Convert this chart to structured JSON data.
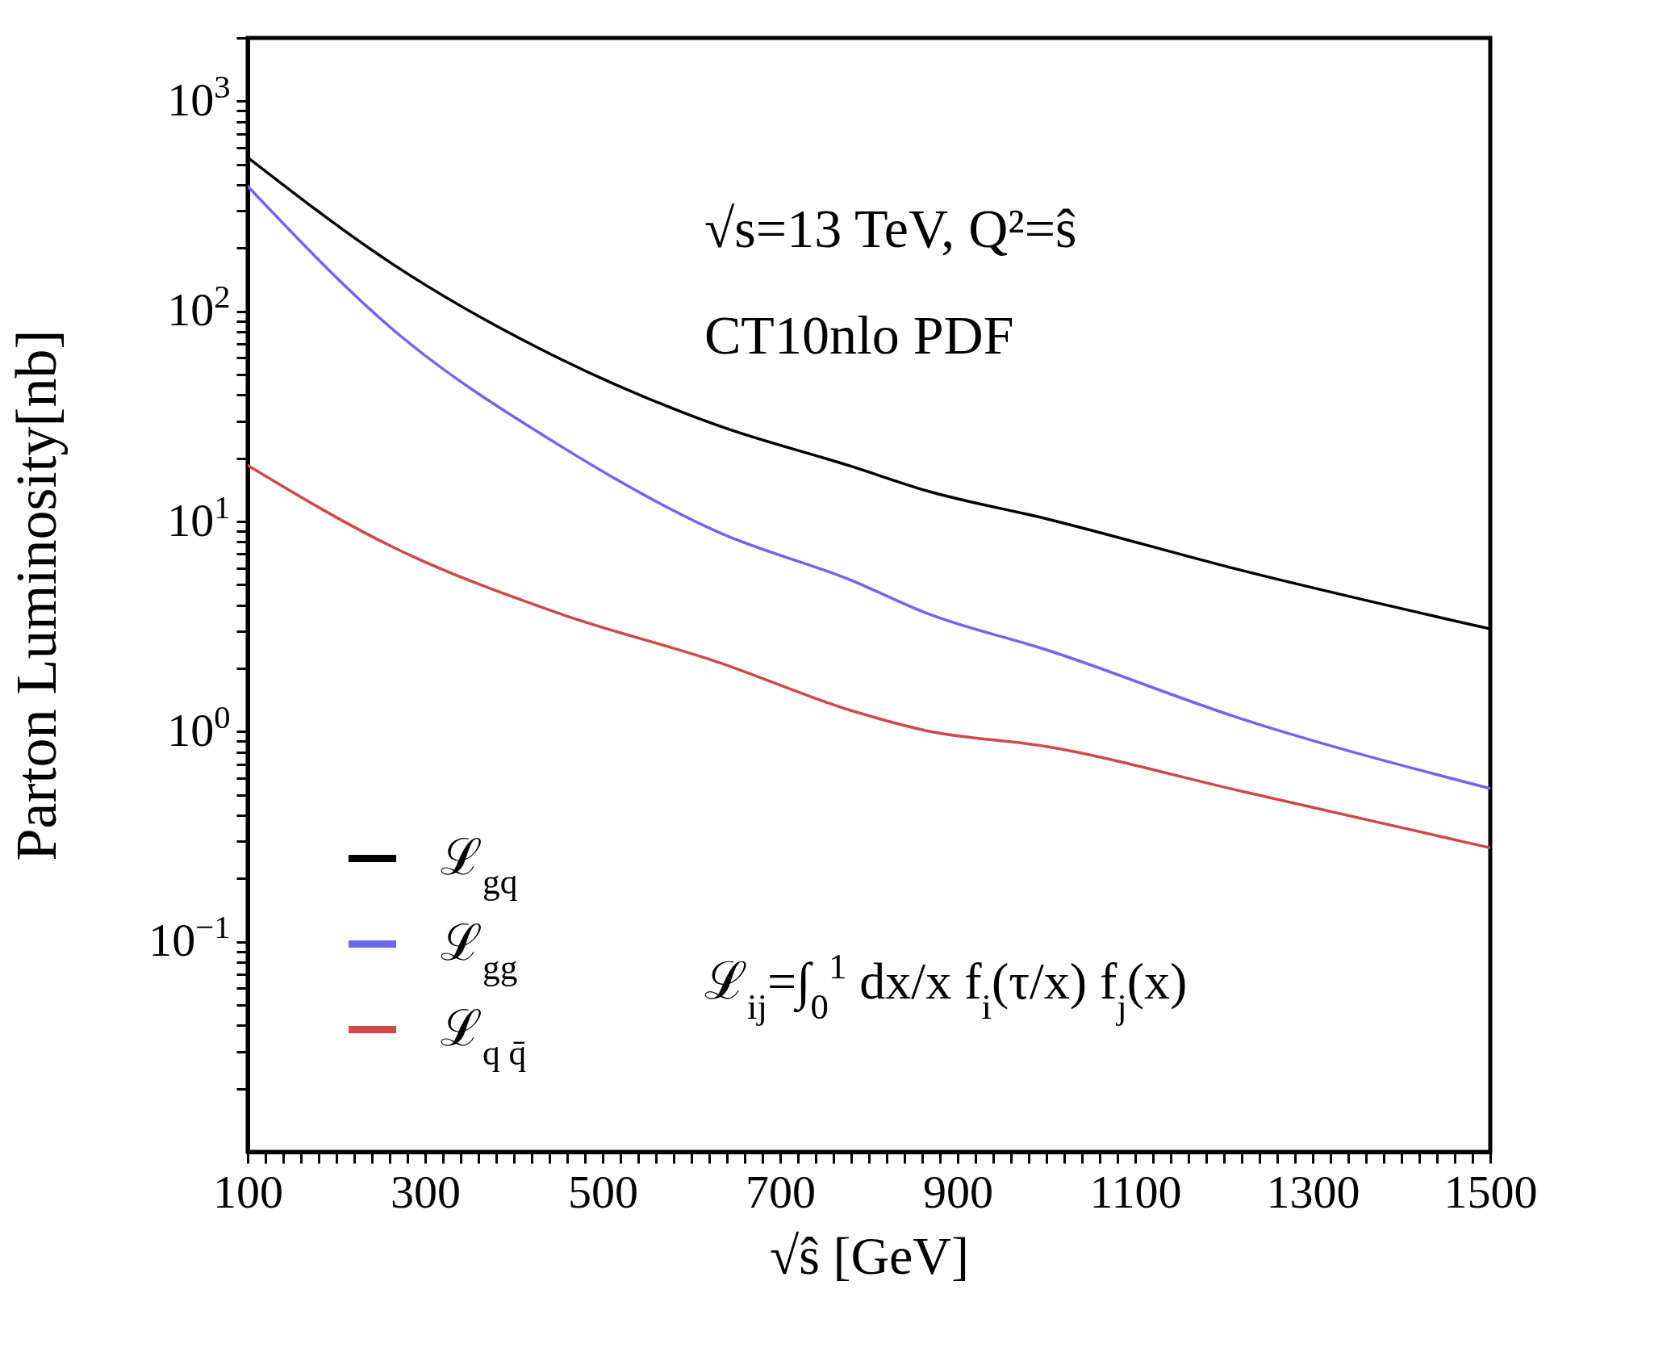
{
  "chart_data": {
    "type": "line",
    "xlabel": "√ŝ [GeV]",
    "ylabel": "Parton Luminosity[nb]",
    "annotations": [
      "√s=13 TeV, Q²=ŝ",
      "CT10nlo PDF",
      "ℒ$_{ij}$=∫$_{0}$$^{1}$ dx/x f$_{i}$(τ/x) f$_{j}$(x)"
    ],
    "x": [
      100,
      265,
      450,
      630,
      780,
      865,
      1000,
      1220,
      1500
    ],
    "series": [
      {
        "name": "ℒ$_{gq}$",
        "color": "#000000",
        "values": [
          540,
          166,
          60,
          28.6,
          18.3,
          14.0,
          10.3,
          5.85,
          3.08
        ]
      },
      {
        "name": "ℒ$_{gg}$",
        "color": "#7066ee",
        "values": [
          394,
          81,
          23.2,
          8.9,
          5.25,
          3.66,
          2.45,
          1.15,
          0.536
        ]
      },
      {
        "name": "ℒ$_{q q̄}$",
        "color": "#d04848",
        "values": [
          18.5,
          7.5,
          3.66,
          2.14,
          1.26,
          1.01,
          0.85,
          0.52,
          0.28
        ]
      }
    ],
    "log": "y",
    "legend": "bottom left",
    "xlim": [
      100,
      1500
    ],
    "ylim": [
      0.01,
      2000
    ],
    "xticks": [
      100,
      {
        "value": 120,
        "label": null
      },
      {
        "value": 140,
        "label": null
      },
      {
        "value": 160,
        "label": null
      },
      {
        "value": 180,
        "label": null
      },
      {
        "value": 200,
        "label": null
      },
      {
        "value": 220,
        "label": null
      },
      {
        "value": 240,
        "label": null
      },
      {
        "value": 260,
        "label": null
      },
      {
        "value": 280,
        "label": null
      },
      300,
      {
        "value": 320,
        "label": null
      },
      {
        "value": 340,
        "label": null
      },
      {
        "value": 360,
        "label": null
      },
      {
        "value": 380,
        "label": null
      },
      {
        "value": 400,
        "label": null
      },
      {
        "value": 420,
        "label": null
      },
      {
        "value": 440,
        "label": null
      },
      {
        "value": 460,
        "label": null
      },
      {
        "value": 480,
        "label": null
      },
      500,
      {
        "value": 520,
        "label": null
      },
      {
        "value": 540,
        "label": null
      },
      {
        "value": 560,
        "label": null
      },
      {
        "value": 580,
        "label": null
      },
      {
        "value": 600,
        "label": null
      },
      {
        "value": 620,
        "label": null
      },
      {
        "value": 640,
        "label": null
      },
      {
        "value": 660,
        "label": null
      },
      {
        "value": 680,
        "label": null
      },
      700,
      {
        "value": 720,
        "label": null
      },
      {
        "value": 740,
        "label": null
      },
      {
        "value": 760,
        "label": null
      },
      {
        "value": 780,
        "label": null
      },
      {
        "value": 800,
        "label": null
      },
      {
        "value": 820,
        "label": null
      },
      {
        "value": 840,
        "label": null
      },
      {
        "value": 860,
        "label": null
      },
      {
        "value": 880,
        "label": null
      },
      900,
      {
        "value": 920,
        "label": null
      },
      {
        "value": 940,
        "label": null
      },
      {
        "value": 960,
        "label": null
      },
      {
        "value": 980,
        "label": null
      },
      {
        "value": 1000,
        "label": null
      },
      {
        "value": 1020,
        "label": null
      },
      {
        "value": 1040,
        "label": null
      },
      {
        "value": 1060,
        "label": null
      },
      {
        "value": 1080,
        "label": null
      },
      1100,
      {
        "value": 1120,
        "label": null
      },
      {
        "value": 1140,
        "label": null
      },
      {
        "value": 1160,
        "label": null
      },
      {
        "value": 1180,
        "label": null
      },
      {
        "value": 1200,
        "label": null
      },
      {
        "value": 1220,
        "label": null
      },
      {
        "value": 1240,
        "label": null
      },
      {
        "value": 1260,
        "label": null
      },
      {
        "value": 1280,
        "label": null
      },
      1300,
      {
        "value": 1320,
        "label": null
      },
      {
        "value": 1340,
        "label": null
      },
      {
        "value": 1360,
        "label": null
      },
      {
        "value": 1380,
        "label": null
      },
      {
        "value": 1400,
        "label": null
      },
      {
        "value": 1420,
        "label": null
      },
      {
        "value": 1440,
        "label": null
      },
      {
        "value": 1460,
        "label": null
      },
      {
        "value": 1480,
        "label": null
      },
      1500
    ],
    "yticks": [
      {
        "value": 0.02,
        "label": null
      },
      {
        "value": 0.03,
        "label": null
      },
      {
        "value": 0.04,
        "label": null
      },
      {
        "value": 0.05,
        "label": null
      },
      {
        "value": 0.06,
        "label": null
      },
      {
        "value": 0.07,
        "label": null
      },
      {
        "value": 0.08,
        "label": null
      },
      {
        "value": 0.09,
        "label": null
      },
      {
        "value": 0.1,
        "label": "10$^{−1}$"
      },
      {
        "value": 0.2,
        "label": null
      },
      {
        "value": 0.3,
        "label": null
      },
      {
        "value": 0.4,
        "label": null
      },
      {
        "value": 0.5,
        "label": null
      },
      {
        "value": 0.6,
        "label": null
      },
      {
        "value": 0.7,
        "label": null
      },
      {
        "value": 0.8,
        "label": null
      },
      {
        "value": 0.9,
        "label": null
      },
      {
        "value": 1,
        "label": "10$^{0}$"
      },
      {
        "value": 2,
        "label": null
      },
      {
        "value": 3,
        "label": null
      },
      {
        "value": 4,
        "label": null
      },
      {
        "value": 5,
        "label": null
      },
      {
        "value": 6,
        "label": null
      },
      {
        "value": 7,
        "label": null
      },
      {
        "value": 8,
        "label": null
      },
      {
        "value": 9,
        "label": null
      },
      {
        "value": 10,
        "label": "10$^{1}$"
      },
      {
        "value": 20,
        "label": null
      },
      {
        "value": 30,
        "label": null
      },
      {
        "value": 40,
        "label": null
      },
      {
        "value": 50,
        "label": null
      },
      {
        "value": 60,
        "label": null
      },
      {
        "value": 70,
        "label": null
      },
      {
        "value": 80,
        "label": null
      },
      {
        "value": 90,
        "label": null
      },
      {
        "value": 100,
        "label": "10$^{2}$"
      },
      {
        "value": 200,
        "label": null
      },
      {
        "value": 300,
        "label": null
      },
      {
        "value": 400,
        "label": null
      },
      {
        "value": 500,
        "label": null
      },
      {
        "value": 600,
        "label": null
      },
      {
        "value": 700,
        "label": null
      },
      {
        "value": 800,
        "label": null
      },
      {
        "value": 900,
        "label": null
      },
      {
        "value": 1000,
        "label": "10$^{3}$"
      },
      {
        "value": 2000,
        "label": null
      }
    ]
  }
}
